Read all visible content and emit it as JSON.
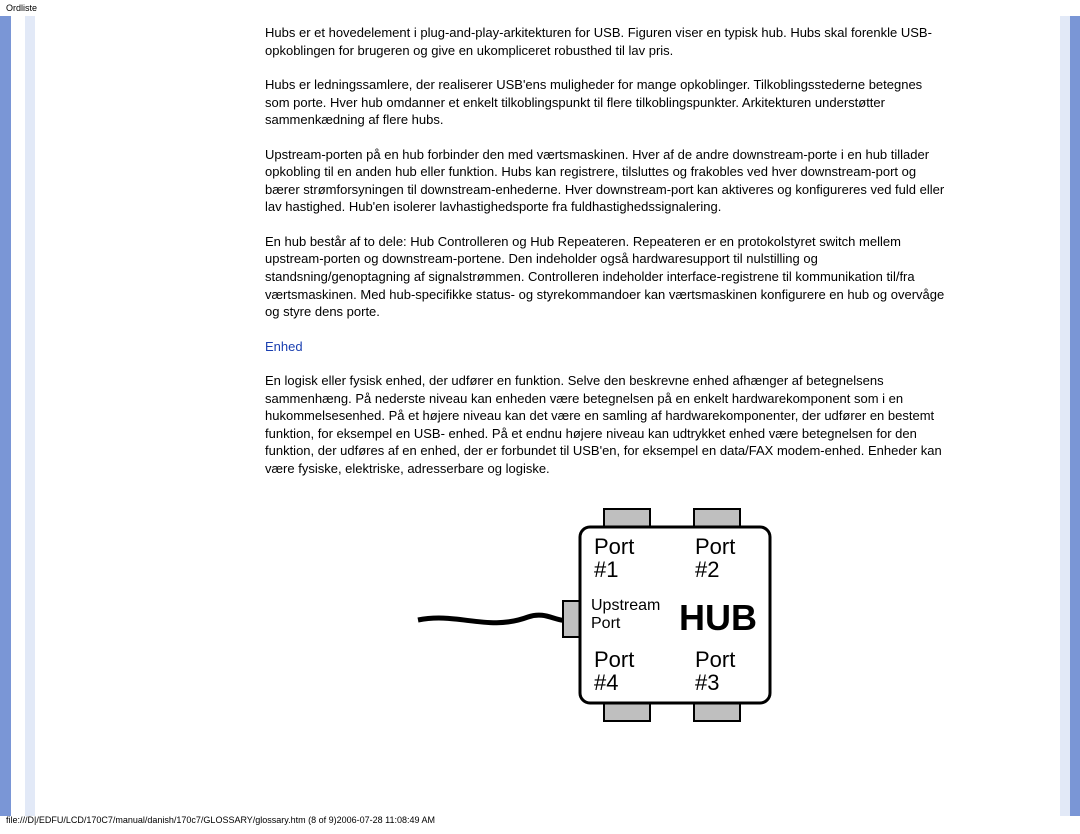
{
  "header": {
    "title": "Ordliste"
  },
  "paragraphs": {
    "p1": "Hubs er et hovedelement i plug-and-play-arkitekturen for USB. Figuren viser en typisk hub. Hubs skal forenkle USB-opkoblingen for brugeren og give en ukompliceret robusthed til lav pris.",
    "p2": "Hubs er ledningssamlere, der realiserer USB'ens muligheder for mange opkoblinger. Tilkoblingsstederne betegnes som porte. Hver hub omdanner et enkelt tilkoblingspunkt til flere tilkoblingspunkter. Arkitekturen understøtter sammenkædning af flere hubs.",
    "p3": "Upstream-porten på en hub forbinder den med værtsmaskinen. Hver af de andre downstream-porte i en hub tillader opkobling til en anden hub eller funktion. Hubs kan registrere, tilsluttes og frakobles ved hver downstream-port og bærer strømforsyningen til downstream-enhederne. Hver downstream-port kan aktiveres og konfigureres ved fuld eller lav hastighed. Hub'en isolerer lavhastighedsporte fra fuldhastighedssignalering.",
    "p4": "En hub består af to dele: Hub Controlleren og Hub Repeateren. Repeateren er en protokolstyret switch mellem upstream-porten og downstream-portene. Den indeholder også hardwaresupport til nulstilling og standsning/genoptagning af signalstrømmen. Controlleren indeholder interface-registrene til kommunikation til/fra værtsmaskinen. Med hub-specifikke status- og styrekommandoer kan værtsmaskinen konfigurere en hub og overvåge og styre dens porte.",
    "subhead": "Enhed",
    "p5": "En logisk eller fysisk enhed, der udfører en funktion. Selve den beskrevne enhed afhænger af betegnelsens sammenhæng. På nederste niveau kan enheden være betegnelsen på en enkelt hardwarekomponent som i en hukommelsesenhed. På et højere niveau kan det være en samling af hardwarekomponenter, der udfører en bestemt funktion, for eksempel en USB- enhed. På et endnu højere niveau kan udtrykket enhed være betegnelsen for den funktion, der udføres af en enhed, der er forbundet til USB'en, for eksempel en data/FAX modem-enhed. Enheder kan være fysiske, elektriske, adresserbare og logiske."
  },
  "diagram": {
    "port1": "Port",
    "port1_num": "#1",
    "port2": "Port",
    "port2_num": "#2",
    "upstream1": "Upstream",
    "upstream2": "Port",
    "hub": "HUB",
    "port4": "Port",
    "port4_num": "#4",
    "port3": "Port",
    "port3_num": "#3",
    "colors": {
      "box_stroke": "#000000",
      "tab_fill": "#bfbfbf",
      "cable": "#000000",
      "bg": "#ffffff"
    }
  },
  "footer": {
    "path": "file:///D|/EDFU/LCD/170C7/manual/danish/170c7/GLOSSARY/glossary.htm (8 of 9)2006-07-28 11:08:49 AM"
  }
}
